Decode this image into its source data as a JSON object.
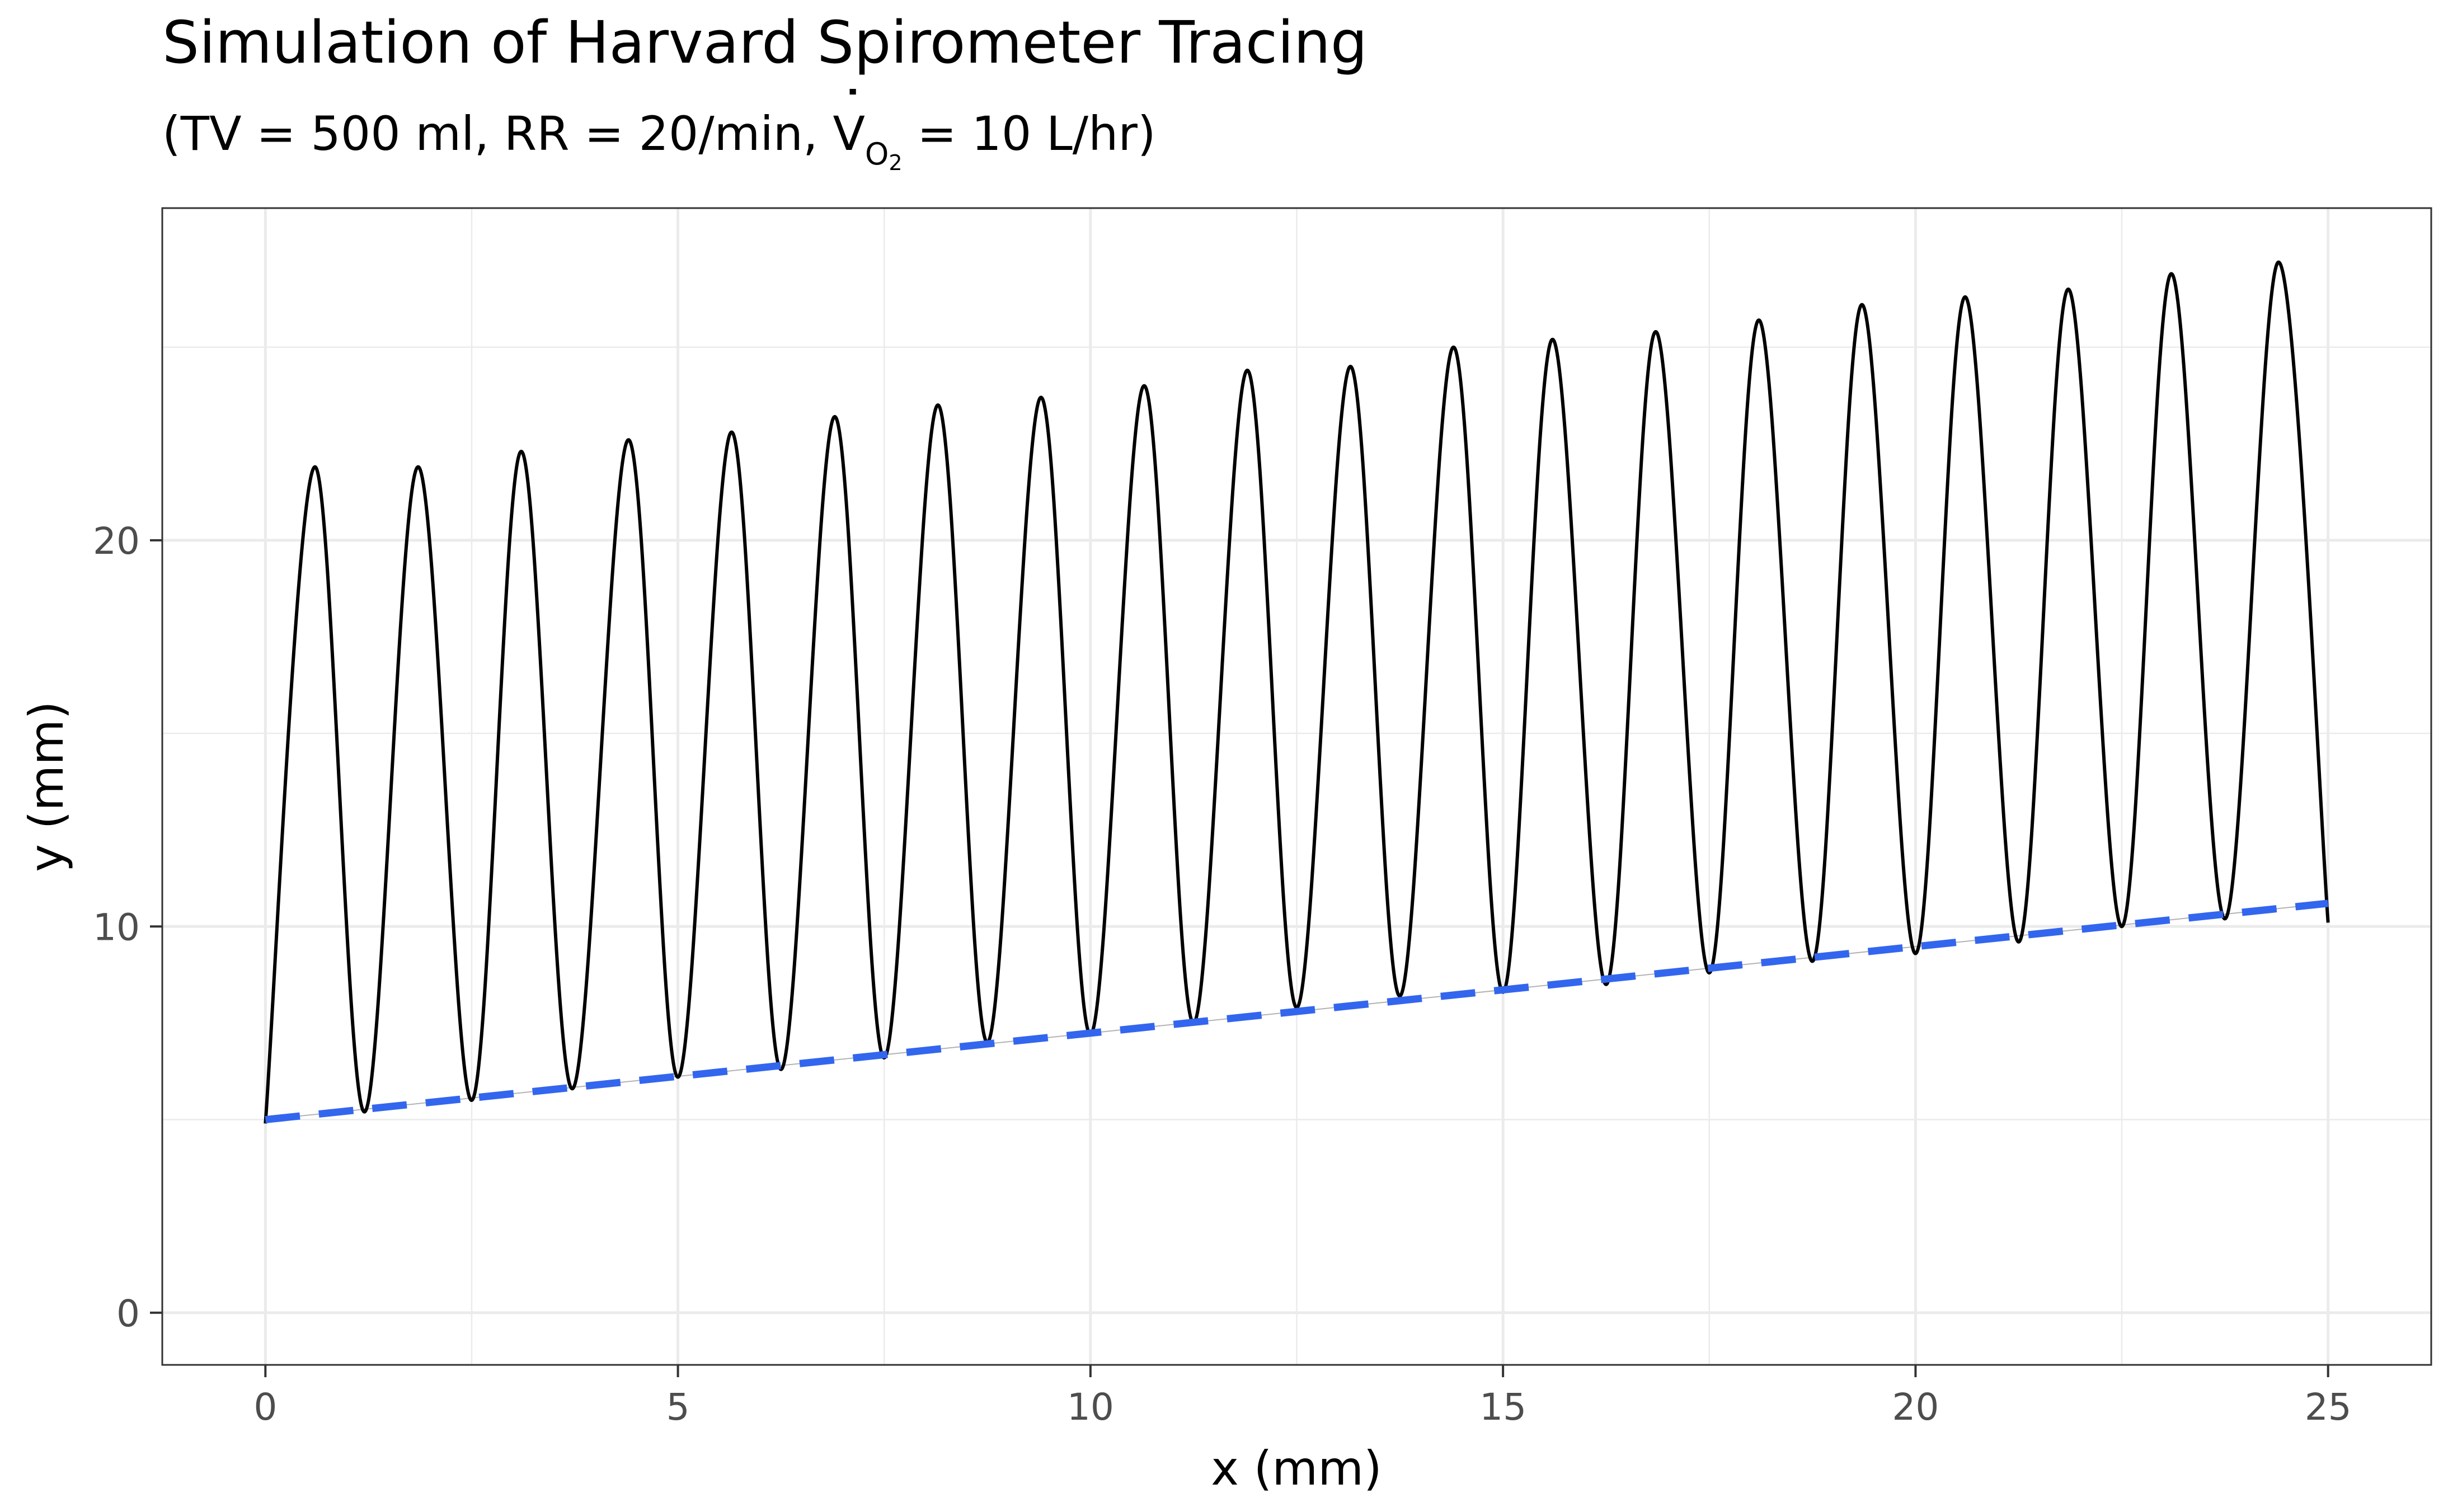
{
  "chart_data": {
    "type": "line",
    "title": "Simulation of Harvard Spirometer Tracing",
    "subtitle": {
      "prefix": "(TV = 500 ml, RR = 20/min, ",
      "v": "V",
      "sub_o": "O",
      "sub_2": "2",
      "suffix": " = 10 L/hr)"
    },
    "xlabel": "x (mm)",
    "ylabel": "y (mm)",
    "xlim": [
      -1.25,
      26.25
    ],
    "ylim": [
      -1.35,
      28.6
    ],
    "x_ticks": [
      0,
      5,
      10,
      15,
      20,
      25
    ],
    "x_tick_labels": [
      "0",
      "5",
      "10",
      "15",
      "20",
      "25"
    ],
    "y_ticks": [
      0,
      10,
      20
    ],
    "y_tick_labels": [
      "0",
      "10",
      "20"
    ],
    "grid": true,
    "colors": {
      "trace": "#000000",
      "baseline": "#3366ee",
      "reference": "#b3b3b3",
      "grid": "#ebebeb"
    },
    "series": [
      {
        "style": "solid-black",
        "x": [
          0,
          0.6,
          1.2,
          1.85,
          2.5,
          3.1,
          3.72,
          4.4,
          5.0,
          5.65,
          6.25,
          6.9,
          7.5,
          8.15,
          8.75,
          9.4,
          10.0,
          10.65,
          11.25,
          11.9,
          12.5,
          13.15,
          13.75,
          14.4,
          15.0,
          15.6,
          16.25,
          16.85,
          17.5,
          18.1,
          18.75,
          19.35,
          20.0,
          20.6,
          21.25,
          21.85,
          22.5,
          23.1,
          23.75,
          24.4,
          25.0
        ],
        "y": [
          4.9,
          21.9,
          5.2,
          21.9,
          5.5,
          22.3,
          5.8,
          22.6,
          6.1,
          22.8,
          6.3,
          23.2,
          6.6,
          23.5,
          7.0,
          23.7,
          7.2,
          24.0,
          7.5,
          24.4,
          7.9,
          24.5,
          8.2,
          25.0,
          8.3,
          25.2,
          8.5,
          25.4,
          8.8,
          25.7,
          9.1,
          26.1,
          9.3,
          26.3,
          9.6,
          26.5,
          10.0,
          26.9,
          10.2,
          27.2,
          10.1
        ]
      },
      {
        "style": "dashed-blue",
        "x": [
          0,
          25
        ],
        "y": [
          5.0,
          10.6
        ]
      }
    ]
  }
}
